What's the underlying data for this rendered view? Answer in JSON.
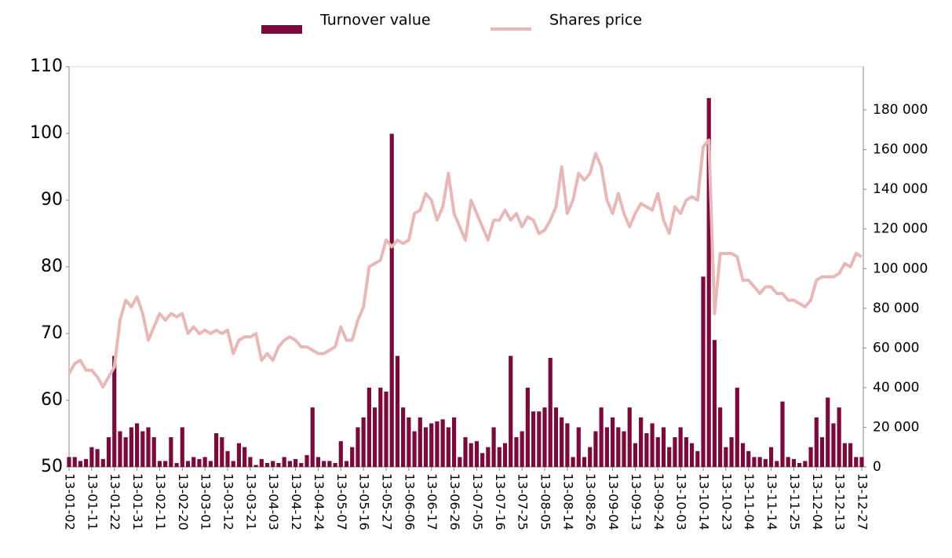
{
  "chart_data": {
    "type": "bar_line",
    "categories": [
      "13-01-02",
      null,
      null,
      null,
      "13-01-11",
      null,
      null,
      null,
      "13-01-22",
      null,
      null,
      null,
      "13-01-31",
      null,
      null,
      null,
      "13-02-11",
      null,
      null,
      null,
      "13-02-20",
      null,
      null,
      null,
      "13-03-01",
      null,
      null,
      null,
      "13-03-12",
      null,
      null,
      null,
      "13-03-21",
      null,
      null,
      null,
      "13-04-03",
      null,
      null,
      null,
      "13-04-12",
      null,
      null,
      null,
      "13-04-24",
      null,
      null,
      null,
      "13-05-07",
      null,
      null,
      null,
      "13-05-16",
      null,
      null,
      null,
      "13-05-27",
      null,
      null,
      null,
      "13-06-06",
      null,
      null,
      null,
      "13-06-17",
      null,
      null,
      null,
      "13-06-26",
      null,
      null,
      null,
      "13-07-05",
      null,
      null,
      null,
      "13-07-16",
      null,
      null,
      null,
      "13-07-25",
      null,
      null,
      null,
      "13-08-05",
      null,
      null,
      null,
      "13-08-14",
      null,
      null,
      null,
      "13-08-26",
      null,
      null,
      null,
      "13-09-04",
      null,
      null,
      null,
      "13-09-13",
      null,
      null,
      null,
      "13-09-24",
      null,
      null,
      null,
      "13-10-03",
      null,
      null,
      null,
      "13-10-14",
      null,
      null,
      null,
      "13-10-23",
      null,
      null,
      null,
      "13-11-04",
      null,
      null,
      null,
      "13-11-14",
      null,
      null,
      null,
      "13-11-25",
      null,
      null,
      null,
      "13-12-04",
      null,
      null,
      null,
      "13-12-13",
      null,
      null,
      null,
      "13-12-27"
    ],
    "series": [
      {
        "name": "Turnover value",
        "kind": "bar",
        "axis": "y2",
        "color": "#7b0a3c",
        "values": [
          5000,
          5000,
          3000,
          4000,
          10000,
          9000,
          4000,
          15000,
          56000,
          18000,
          15000,
          20000,
          22000,
          18000,
          20000,
          15000,
          3000,
          3000,
          15000,
          2000,
          20000,
          3000,
          5000,
          4000,
          5000,
          3000,
          17000,
          15000,
          8000,
          3000,
          12000,
          10000,
          5000,
          1000,
          4000,
          2000,
          3000,
          2000,
          5000,
          3000,
          4000,
          2000,
          6000,
          30000,
          5000,
          3000,
          3000,
          2000,
          13000,
          3000,
          10000,
          20000,
          25000,
          40000,
          30000,
          40000,
          38000,
          168000,
          56000,
          30000,
          25000,
          18000,
          25000,
          20000,
          22000,
          23000,
          24000,
          20000,
          25000,
          5000,
          15000,
          12000,
          13000,
          7000,
          10000,
          20000,
          10000,
          12000,
          56000,
          15000,
          18000,
          40000,
          28000,
          28000,
          30000,
          55000,
          30000,
          25000,
          22000,
          5000,
          20000,
          5000,
          10000,
          18000,
          30000,
          20000,
          25000,
          20000,
          18000,
          30000,
          12000,
          25000,
          17000,
          22000,
          15000,
          20000,
          10000,
          15000,
          20000,
          15000,
          12000,
          8000,
          96000,
          186000,
          64000,
          30000,
          10000,
          15000,
          40000,
          12000,
          8000,
          5000,
          5000,
          4000,
          10000,
          3000,
          33000,
          5000,
          4000,
          2000,
          3000,
          10000,
          25000,
          15000,
          35000,
          22000,
          30000,
          12000,
          12000,
          5000,
          5000
        ]
      },
      {
        "name": "Shares price",
        "kind": "line",
        "axis": "y",
        "color": "#e8b8b8",
        "values": [
          64,
          65.5,
          66,
          64.5,
          64.5,
          63.5,
          62,
          63.5,
          65,
          72,
          75,
          74,
          75.5,
          73,
          69,
          71,
          73,
          72,
          73,
          72.5,
          73,
          70,
          71,
          70,
          70.5,
          70,
          70.5,
          70,
          70.5,
          67,
          69,
          69.5,
          69.5,
          70,
          66,
          67,
          66,
          68,
          69,
          69.5,
          69,
          68,
          68,
          67.5,
          67,
          67,
          67.5,
          68,
          71,
          69,
          69,
          72,
          74,
          80,
          80.5,
          81,
          84,
          83,
          84,
          83.5,
          84,
          88,
          88.5,
          91,
          90,
          87,
          89,
          94,
          88,
          86,
          84,
          90,
          88,
          86,
          84,
          87,
          87,
          88.5,
          87,
          88,
          86,
          87.5,
          87,
          85,
          85.5,
          87,
          89,
          95,
          88,
          90,
          94,
          93,
          94,
          97,
          95,
          90,
          88,
          91,
          88,
          86,
          88,
          89.5,
          89,
          88.5,
          91,
          87,
          85,
          89,
          88,
          90,
          90.5,
          90,
          98,
          99,
          73,
          82,
          82,
          82,
          81.5,
          78,
          78,
          77,
          76,
          77,
          77,
          76,
          76,
          75,
          75,
          74.5,
          74,
          75,
          78,
          78.5,
          78.5,
          78.5,
          79,
          80.5,
          80,
          82,
          81.5
        ]
      }
    ],
    "ylim": [
      50,
      110
    ],
    "yticks": [
      50,
      60,
      70,
      80,
      90,
      100,
      110
    ],
    "y2lim": [
      0,
      201800
    ],
    "y2ticks": [
      0,
      {
        "value": 20000,
        "label": "20 000"
      },
      {
        "value": 40000,
        "label": "40 000"
      },
      {
        "value": 60000,
        "label": "60 000"
      },
      {
        "value": 80000,
        "label": "80 000"
      },
      {
        "value": 100000,
        "label": "100 000"
      },
      {
        "value": 120000,
        "label": "120 000"
      },
      {
        "value": 140000,
        "label": "140 000"
      },
      {
        "value": 160000,
        "label": "160 000"
      },
      {
        "value": 180000,
        "label": "180 000"
      }
    ],
    "legend": "top"
  }
}
